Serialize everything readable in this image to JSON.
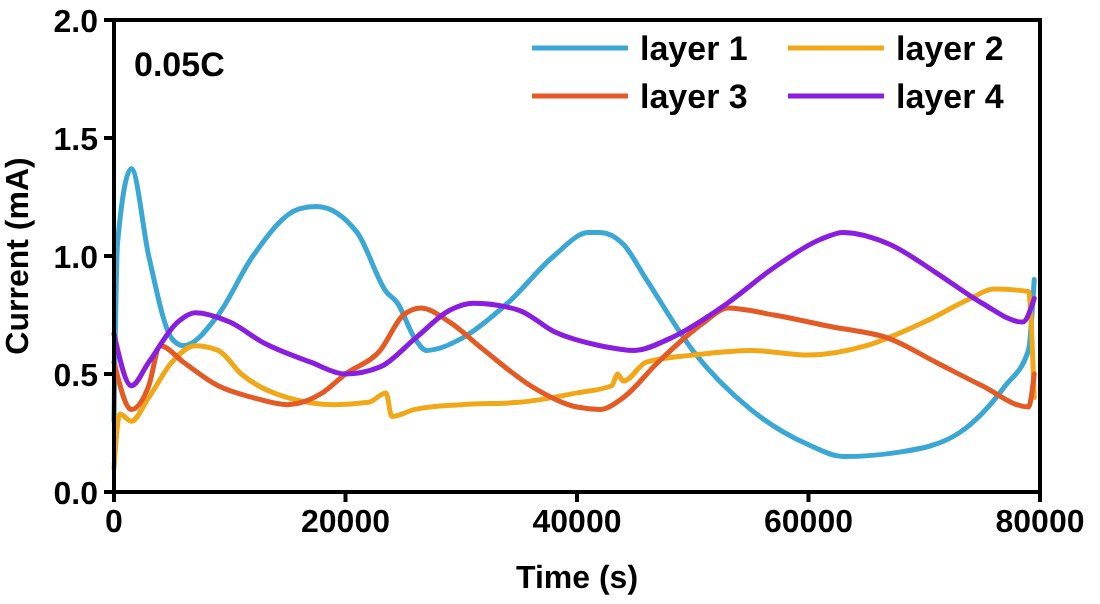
{
  "chart_data": {
    "type": "line",
    "xlabel": "Time (s)",
    "ylabel": "Current (mA)",
    "annotations": [
      "0.05C"
    ],
    "xlim": [
      0,
      80000
    ],
    "xticks": [
      0,
      20000,
      40000,
      60000,
      80000
    ],
    "ylim": [
      0,
      2
    ],
    "yticks": [
      {
        "value": 0,
        "label": "0.0"
      },
      {
        "value": 0.5,
        "label": "0.5"
      },
      {
        "value": 1,
        "label": "1.0"
      },
      {
        "value": 1.5,
        "label": "1.5"
      },
      {
        "value": 2,
        "label": "2.0"
      }
    ],
    "grid": false,
    "legend": "top right",
    "marker": "none",
    "line_style": "solid",
    "series": [
      {
        "name": "layer 1",
        "color": "#3ba7d4",
        "x": [
          0,
          300,
          1500,
          3000,
          5000,
          6000,
          9000,
          12000,
          16000,
          17500,
          21000,
          23500,
          24500,
          26000,
          27000,
          30000,
          34000,
          38000,
          41000,
          42000,
          44000,
          46000,
          50000,
          55000,
          60000,
          63000,
          68000,
          73000,
          77000,
          79000,
          79500
        ],
        "values": [
          0.3,
          1.05,
          1.37,
          1.0,
          0.65,
          0.62,
          0.75,
          1.0,
          1.2,
          1.21,
          1.1,
          0.85,
          0.8,
          0.65,
          0.6,
          0.65,
          0.8,
          1.0,
          1.1,
          1.1,
          1.05,
          0.9,
          0.6,
          0.35,
          0.2,
          0.15,
          0.17,
          0.25,
          0.45,
          0.6,
          0.9
        ]
      },
      {
        "name": "layer 2",
        "color": "#f0a818",
        "x": [
          0,
          500,
          1500,
          3000,
          5000,
          7000,
          9000,
          11000,
          15000,
          19000,
          22000,
          23500,
          24000,
          26000,
          30000,
          35000,
          40000,
          43000,
          43500,
          44000,
          46000,
          50000,
          55000,
          60000,
          65000,
          70000,
          74000,
          76000,
          79000,
          79500
        ],
        "values": [
          0.1,
          0.33,
          0.3,
          0.4,
          0.55,
          0.62,
          0.6,
          0.5,
          0.4,
          0.37,
          0.38,
          0.42,
          0.32,
          0.35,
          0.37,
          0.38,
          0.42,
          0.45,
          0.5,
          0.47,
          0.55,
          0.58,
          0.6,
          0.58,
          0.62,
          0.72,
          0.82,
          0.86,
          0.85,
          0.4
        ]
      },
      {
        "name": "layer 3",
        "color": "#e35a25",
        "x": [
          0,
          1500,
          3000,
          4000,
          6000,
          9000,
          12000,
          15000,
          18000,
          20000,
          23000,
          25000,
          26500,
          29000,
          32000,
          36000,
          40000,
          42000,
          44000,
          47000,
          51000,
          53000,
          57000,
          62000,
          67000,
          71000,
          75000,
          79000,
          79500
        ],
        "values": [
          0.55,
          0.35,
          0.45,
          0.62,
          0.55,
          0.45,
          0.4,
          0.37,
          0.42,
          0.5,
          0.6,
          0.75,
          0.78,
          0.72,
          0.6,
          0.45,
          0.36,
          0.35,
          0.4,
          0.55,
          0.72,
          0.78,
          0.75,
          0.7,
          0.65,
          0.55,
          0.45,
          0.36,
          0.5
        ]
      },
      {
        "name": "layer 4",
        "color": "#8a1ee0",
        "x": [
          0,
          1500,
          3000,
          5500,
          7000,
          10000,
          13000,
          17000,
          20000,
          23000,
          26000,
          29000,
          31000,
          35000,
          38000,
          42000,
          45000,
          48000,
          53000,
          57000,
          61000,
          63000,
          67000,
          71000,
          75000,
          78500,
          79500
        ],
        "values": [
          0.67,
          0.45,
          0.55,
          0.72,
          0.76,
          0.72,
          0.63,
          0.55,
          0.5,
          0.53,
          0.65,
          0.77,
          0.8,
          0.77,
          0.68,
          0.62,
          0.6,
          0.65,
          0.8,
          0.95,
          1.07,
          1.1,
          1.05,
          0.93,
          0.8,
          0.72,
          0.82
        ]
      }
    ]
  }
}
